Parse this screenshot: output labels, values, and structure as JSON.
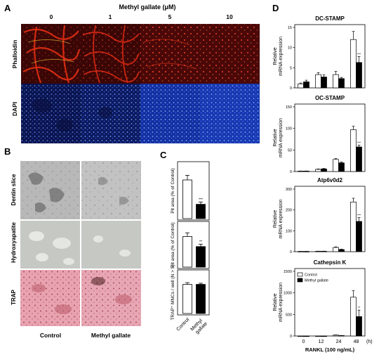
{
  "panels": {
    "A": "A",
    "B": "B",
    "C": "C",
    "D": "D"
  },
  "panel_a": {
    "title": "Methyl gallate (μM)",
    "concentrations": [
      "0",
      "1",
      "5",
      "10"
    ],
    "row_labels": [
      "Phalloidin",
      "DAPI"
    ],
    "colors": {
      "phalloidin": "#b81410",
      "phalloidin_bg": "#3a0606",
      "dapi": "#2448e0",
      "dapi_bg": "#060a30"
    }
  },
  "panel_b": {
    "row_labels": [
      "Dentin slice",
      "Hydroxyapatite",
      "TRAP"
    ],
    "column_labels": [
      "Control",
      "Methyl gallate"
    ]
  },
  "chart_data": [
    {
      "type": "bar",
      "panel": "C",
      "ylabel": "Pit area (% of Control)",
      "categories": [
        "Control",
        "Methyl gallate"
      ],
      "values": [
        100,
        37
      ],
      "errors": [
        12,
        6
      ],
      "ylim": [
        0,
        140
      ],
      "significance": [
        "",
        "***"
      ]
    },
    {
      "type": "bar",
      "panel": "C",
      "ylabel": "Pit area (% of Control)",
      "categories": [
        "Control",
        "Methyl gallate"
      ],
      "values": [
        100,
        67
      ],
      "errors": [
        12,
        8
      ],
      "ylim": [
        0,
        140
      ],
      "significance": [
        "",
        "**"
      ]
    },
    {
      "type": "bar",
      "panel": "C",
      "ylabel": "TRAP⁺ MNCs / well (N > 5)",
      "categories": [
        "Control",
        "Methyl gallate"
      ],
      "values": [
        100,
        100
      ],
      "errors": [
        6,
        4
      ],
      "ylim": [
        0,
        140
      ],
      "significance": [
        "",
        ""
      ]
    },
    {
      "type": "bar",
      "panel": "D",
      "title": "DC-STAMP",
      "ylabel": "Relative mRNA expression",
      "categories": [
        "0",
        "12",
        "24",
        "48"
      ],
      "series": [
        {
          "name": "Control",
          "values": [
            1,
            3.3,
            3.3,
            12
          ],
          "errors": [
            0.2,
            0.5,
            0.8,
            2
          ]
        },
        {
          "name": "Methyl gallate",
          "values": [
            1.5,
            2.7,
            2.3,
            6.3
          ],
          "errors": [
            0.4,
            0.5,
            0.3,
            1.5
          ]
        }
      ],
      "ylim": [
        0,
        15
      ],
      "yticks": [
        0,
        5,
        10,
        15
      ],
      "significance": [
        "",
        "",
        "",
        "***"
      ]
    },
    {
      "type": "bar",
      "panel": "D",
      "title": "OC-STAMP",
      "ylabel": "Relative mRNA expression",
      "categories": [
        "0",
        "12",
        "24",
        "48"
      ],
      "series": [
        {
          "name": "Control",
          "values": [
            1,
            5,
            28,
            97
          ],
          "errors": [
            0.3,
            1,
            2,
            8
          ]
        },
        {
          "name": "Methyl gallate",
          "values": [
            1,
            6,
            20,
            57
          ],
          "errors": [
            0.3,
            1,
            2,
            4
          ]
        }
      ],
      "ylim": [
        0,
        150
      ],
      "yticks": [
        0,
        50,
        100,
        150
      ],
      "significance": [
        "",
        "",
        "",
        "***"
      ]
    },
    {
      "type": "bar",
      "panel": "D",
      "title": "Atp6v0d2",
      "ylabel": "Relative mRNA expression",
      "categories": [
        "0",
        "12",
        "24",
        "48"
      ],
      "series": [
        {
          "name": "Control",
          "values": [
            1,
            2,
            20,
            238
          ],
          "errors": [
            0.3,
            0.5,
            3,
            18
          ]
        },
        {
          "name": "Methyl gallate",
          "values": [
            1,
            2,
            10,
            145
          ],
          "errors": [
            0.3,
            0.5,
            2,
            18
          ]
        }
      ],
      "ylim": [
        0,
        300
      ],
      "yticks": [
        0,
        100,
        200,
        300
      ],
      "significance": [
        "",
        "",
        "",
        "***"
      ]
    },
    {
      "type": "bar",
      "panel": "D",
      "title": "Cathepsin K",
      "ylabel": "Relative mRNA expression",
      "categories": [
        "0",
        "12",
        "24",
        "48"
      ],
      "series": [
        {
          "name": "Control",
          "values": [
            0,
            0,
            20,
            900
          ],
          "errors": [
            0,
            0,
            5,
            150
          ]
        },
        {
          "name": "Methyl gallate",
          "values": [
            0,
            0,
            10,
            450
          ],
          "errors": [
            0,
            0,
            3,
            150
          ]
        }
      ],
      "ylim": [
        0,
        1500
      ],
      "yticks": [
        0,
        500,
        1000,
        1500
      ],
      "significance": [
        "",
        "",
        "",
        "**"
      ],
      "legend": [
        "Control",
        "Methyl gallate"
      ],
      "xlabel": "RANKL (100 ng/mL)",
      "x_unit": "(h)"
    }
  ]
}
